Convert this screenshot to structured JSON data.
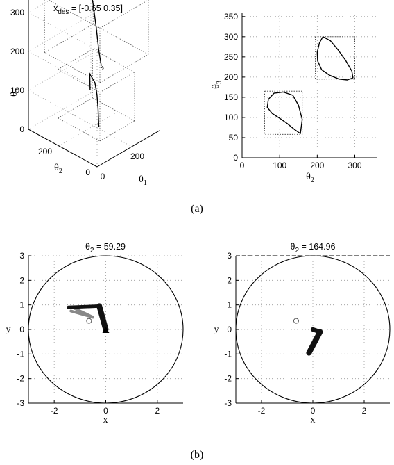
{
  "chart_data": [
    {
      "id": "a-left",
      "type": "line",
      "projection": "3d",
      "title_main": "x",
      "title_sub": "des",
      "title_rest": " = [-0.65 0.35]",
      "xlabel_main": "θ",
      "xlabel_sub": "1",
      "ylabel_main": "θ",
      "ylabel_sub": "2",
      "zlabel_main": "θ",
      "zlabel_sub": "3",
      "xlim": [
        0,
        360
      ],
      "ylim": [
        0,
        360
      ],
      "zlim": [
        0,
        360
      ],
      "x_ticks": [
        "0",
        "200"
      ],
      "y_ticks": [
        "0",
        "200"
      ],
      "z_ticks": [
        "0",
        "100",
        "200",
        "300"
      ],
      "grid": true,
      "series": [
        {
          "points": [
            [
              90,
              60,
              220
            ],
            [
              120,
              100,
              240
            ],
            [
              160,
              150,
              275
            ],
            [
              210,
              210,
              300
            ],
            [
              260,
              270,
              320
            ],
            [
              300,
              320,
              330
            ],
            [
              318,
              340,
              325
            ]
          ]
        },
        {
          "points": [
            [
              100,
              70,
              210
            ],
            [
              120,
              80,
              205
            ],
            [
              132,
              88,
              195
            ],
            [
              135,
              94,
              190
            ]
          ]
        },
        {
          "points": [
            [
              98,
              80,
              55
            ],
            [
              110,
              95,
              95
            ],
            [
              120,
              110,
              125
            ],
            [
              130,
              130,
              148
            ],
            [
              150,
              170,
              150
            ],
            [
              175,
              200,
              142
            ],
            [
              200,
              220,
              120
            ],
            [
              215,
              232,
              80
            ]
          ]
        }
      ]
    },
    {
      "id": "a-right",
      "type": "line",
      "xlabel_main": "θ",
      "xlabel_sub": "2",
      "ylabel_main": "θ",
      "ylabel_sub": "3",
      "xlim": [
        0,
        360
      ],
      "ylim": [
        0,
        360
      ],
      "x_ticks": [
        0,
        100,
        200,
        300
      ],
      "y_ticks": [
        0,
        50,
        100,
        150,
        200,
        250,
        300,
        350
      ],
      "grid": true,
      "boxes": [
        {
          "x": [
            60,
            160
          ],
          "y": [
            58,
            165
          ]
        },
        {
          "x": [
            195,
            300
          ],
          "y": [
            195,
            300
          ]
        }
      ],
      "series": [
        {
          "closed": true,
          "points": [
            [
              155,
              60
            ],
            [
              160,
              95
            ],
            [
              150,
              130
            ],
            [
              135,
              155
            ],
            [
              110,
              163
            ],
            [
              85,
              160
            ],
            [
              70,
              145
            ],
            [
              67,
              125
            ],
            [
              80,
              110
            ],
            [
              100,
              98
            ],
            [
              120,
              85
            ],
            [
              140,
              70
            ]
          ]
        },
        {
          "closed": true,
          "points": [
            [
              215,
              300
            ],
            [
              235,
              290
            ],
            [
              255,
              268
            ],
            [
              275,
              242
            ],
            [
              292,
              215
            ],
            [
              295,
              198
            ],
            [
              280,
              193
            ],
            [
              258,
              195
            ],
            [
              232,
              205
            ],
            [
              212,
              218
            ],
            [
              201,
              240
            ],
            [
              200,
              262
            ],
            [
              206,
              285
            ]
          ]
        }
      ]
    },
    {
      "id": "b-left",
      "type": "line",
      "title_main": "θ",
      "title_sub": "2",
      "title_rest": " = 59.29",
      "xlabel": "x",
      "ylabel": "y",
      "xlim": [
        -3,
        3
      ],
      "ylim": [
        -3,
        3
      ],
      "x_ticks": [
        -2,
        0,
        2
      ],
      "y_ticks": [
        3,
        2,
        1,
        0,
        -1,
        -2,
        -3
      ],
      "grid": true,
      "circle": {
        "cx": 0,
        "cy": 0,
        "r": 3
      },
      "links": [
        {
          "points": [
            [
              0,
              0
            ],
            [
              -0.25,
              0.95
            ]
          ],
          "width": 5
        },
        {
          "points": [
            [
              -0.25,
              0.95
            ],
            [
              -1.45,
              0.9
            ]
          ],
          "width": 3
        }
      ],
      "ghost_links": [
        {
          "points": [
            [
              -0.5,
              0.5
            ],
            [
              -1.35,
              0.75
            ]
          ]
        },
        {
          "points": [
            [
              -0.5,
              0.5
            ],
            [
              -1.2,
              0.85
            ]
          ]
        }
      ],
      "target": {
        "x": -0.65,
        "y": 0.35
      }
    },
    {
      "id": "b-right",
      "type": "line",
      "title_main": "θ",
      "title_sub": "2",
      "title_rest": " = 164.96",
      "xlabel": "x",
      "ylabel": "y",
      "xlim": [
        -3,
        3
      ],
      "ylim": [
        -3,
        3
      ],
      "x_ticks": [
        -2,
        0,
        2
      ],
      "y_ticks": [
        3,
        2,
        1,
        0,
        -1,
        -2,
        -3
      ],
      "grid": true,
      "circle": {
        "cx": 0,
        "cy": 0,
        "r": 3
      },
      "dashed_top_line": {
        "y": 3
      },
      "links": [
        {
          "points": [
            [
              0,
              0
            ],
            [
              0.28,
              -0.1
            ]
          ],
          "width": 4
        },
        {
          "points": [
            [
              0.28,
              -0.1
            ],
            [
              -0.15,
              -0.95
            ]
          ],
          "width": 5
        }
      ],
      "ghost_links": [
        {
          "points": [
            [
              0.22,
              -0.25
            ],
            [
              -0.05,
              -0.85
            ]
          ]
        }
      ],
      "target": {
        "x": -0.65,
        "y": 0.35
      }
    }
  ],
  "captions": {
    "a": "(a)",
    "b": "(b)"
  }
}
